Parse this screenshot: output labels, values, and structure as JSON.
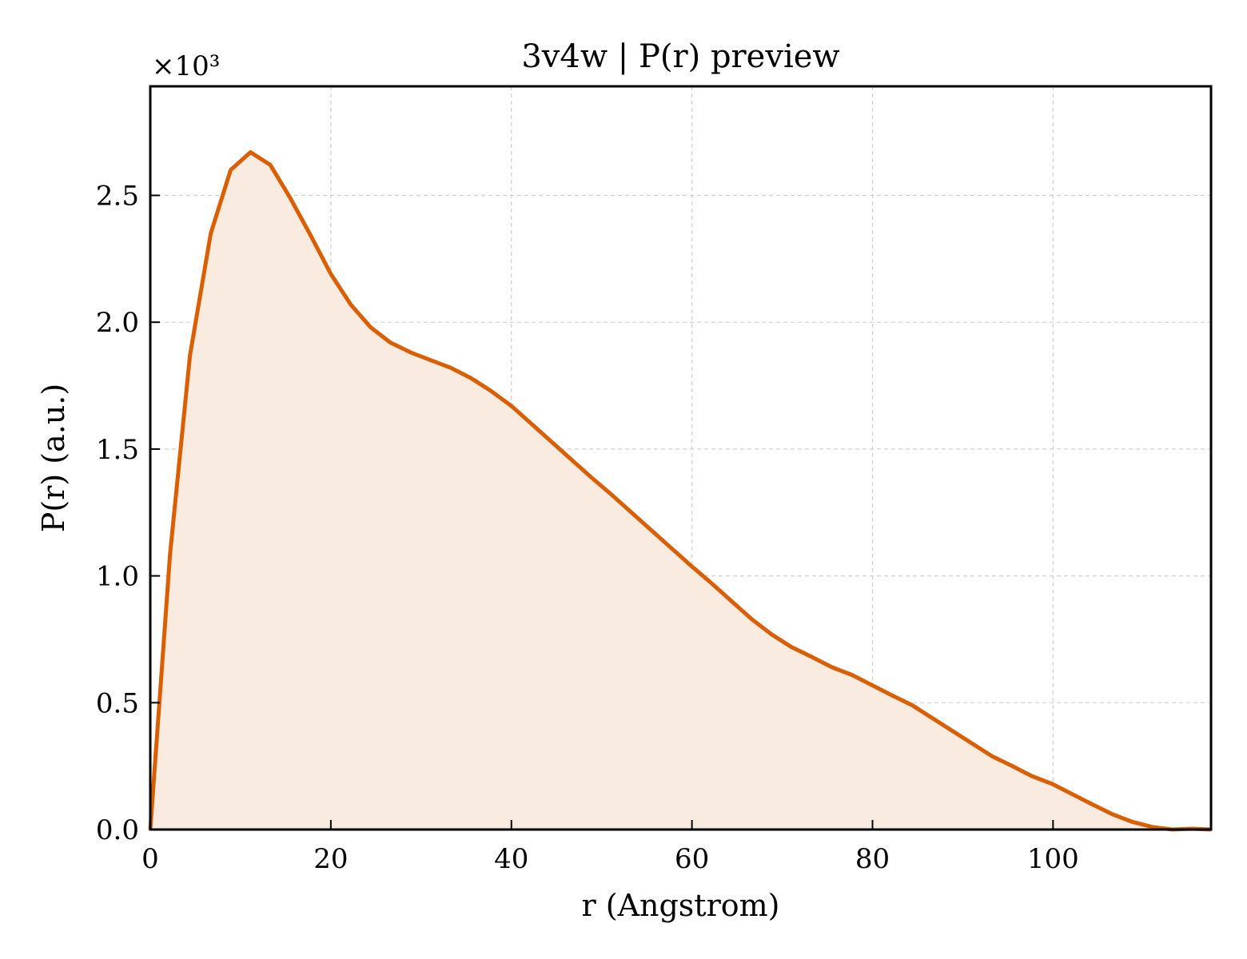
{
  "chart_data": {
    "type": "area",
    "title": "3v4w | P(r) preview",
    "xlabel": "r (Angstrom)",
    "ylabel": "P(r) (a.u.)",
    "y_scale_label": "×10³",
    "xlim": [
      0,
      117.5
    ],
    "ylim": [
      0,
      2.93
    ],
    "xticks": [
      0,
      20,
      40,
      60,
      80,
      100
    ],
    "xtick_labels": [
      "0",
      "20",
      "40",
      "60",
      "80",
      "100"
    ],
    "yticks": [
      0,
      0.5,
      1.0,
      1.5,
      2.0,
      2.5
    ],
    "ytick_labels": [
      "0.0",
      "0.5",
      "1.0",
      "1.5",
      "2.0",
      "2.5"
    ],
    "grid": true,
    "line_color": "#d95f02",
    "fill_color": "#f9ebe0",
    "series": [
      {
        "x": [
          0,
          2.2,
          4.4,
          6.7,
          8.9,
          11.1,
          13.3,
          15.5,
          17.8,
          20.0,
          22.2,
          24.4,
          26.6,
          28.9,
          31.1,
          33.3,
          35.5,
          37.7,
          40.0,
          42.2,
          44.4,
          46.6,
          48.8,
          51.1,
          53.3,
          55.5,
          57.7,
          59.9,
          62.2,
          64.4,
          66.6,
          68.8,
          71.0,
          73.3,
          75.5,
          77.7,
          79.9,
          82.1,
          84.4,
          86.6,
          88.8,
          91.0,
          93.2,
          95.5,
          97.7,
          99.9,
          102.1,
          104.3,
          106.6,
          108.8,
          111.0,
          113.2,
          115.4,
          117.5
        ],
        "y": [
          0.0,
          1.09,
          1.87,
          2.35,
          2.6,
          2.67,
          2.62,
          2.49,
          2.34,
          2.19,
          2.07,
          1.98,
          1.92,
          1.88,
          1.85,
          1.82,
          1.78,
          1.73,
          1.67,
          1.6,
          1.53,
          1.46,
          1.39,
          1.32,
          1.25,
          1.18,
          1.11,
          1.04,
          0.97,
          0.9,
          0.83,
          0.77,
          0.72,
          0.68,
          0.64,
          0.61,
          0.57,
          0.53,
          0.49,
          0.44,
          0.39,
          0.34,
          0.29,
          0.25,
          0.21,
          0.18,
          0.14,
          0.1,
          0.06,
          0.03,
          0.01,
          0.0,
          0.003,
          0.0
        ]
      }
    ]
  }
}
